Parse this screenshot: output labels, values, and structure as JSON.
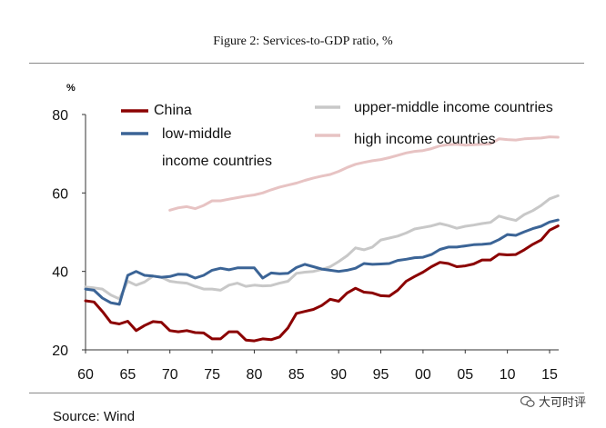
{
  "figure_title": "Figure 2: Services-to-GDP ratio, %",
  "source": "Source: Wind",
  "watermark": "大可时评",
  "chart_data": {
    "type": "line",
    "title": "",
    "xlabel": "",
    "ylabel": "%",
    "xlim": [
      1960,
      2016
    ],
    "ylim": [
      20,
      80
    ],
    "x_tick_labels": [
      "60",
      "65",
      "70",
      "75",
      "80",
      "85",
      "90",
      "95",
      "00",
      "05",
      "10",
      "15"
    ],
    "x_ticks": [
      1960,
      1965,
      1970,
      1975,
      1980,
      1985,
      1990,
      1995,
      2000,
      2005,
      2010,
      2015
    ],
    "y_ticks": [
      20,
      40,
      60,
      80
    ],
    "legend_position": "top-left",
    "series": [
      {
        "name": "China",
        "color": "#8b0000",
        "x": [
          1960,
          1961,
          1962,
          1963,
          1964,
          1965,
          1966,
          1967,
          1968,
          1969,
          1970,
          1971,
          1972,
          1973,
          1974,
          1975,
          1976,
          1977,
          1978,
          1979,
          1980,
          1981,
          1982,
          1983,
          1984,
          1985,
          1986,
          1987,
          1988,
          1989,
          1990,
          1991,
          1992,
          1993,
          1994,
          1995,
          1996,
          1997,
          1998,
          1999,
          2000,
          2001,
          2002,
          2003,
          2004,
          2005,
          2006,
          2007,
          2008,
          2009,
          2010,
          2011,
          2012,
          2013,
          2014,
          2015,
          2016
        ],
        "values": [
          32.5,
          32.2,
          29.8,
          27.0,
          26.6,
          27.3,
          24.9,
          26.2,
          27.2,
          27.0,
          24.9,
          24.6,
          24.9,
          24.4,
          24.3,
          22.8,
          22.8,
          24.6,
          24.6,
          22.5,
          22.3,
          22.8,
          22.6,
          23.3,
          25.6,
          29.3,
          29.8,
          30.3,
          31.3,
          32.9,
          32.4,
          34.5,
          35.7,
          34.7,
          34.5,
          33.8,
          33.7,
          35.2,
          37.5,
          38.7,
          39.8,
          41.2,
          42.3,
          42.0,
          41.2,
          41.4,
          41.9,
          42.9,
          42.9,
          44.4,
          44.2,
          44.3,
          45.5,
          46.9,
          48.0,
          50.5,
          51.6
        ]
      },
      {
        "name": "low-middle income countries",
        "color": "#3b6496",
        "x": [
          1960,
          1961,
          1962,
          1963,
          1964,
          1965,
          1966,
          1967,
          1968,
          1969,
          1970,
          1971,
          1972,
          1973,
          1974,
          1975,
          1976,
          1977,
          1978,
          1979,
          1980,
          1981,
          1982,
          1983,
          1984,
          1985,
          1986,
          1987,
          1988,
          1989,
          1990,
          1991,
          1992,
          1993,
          1994,
          1995,
          1996,
          1997,
          1998,
          1999,
          2000,
          2001,
          2002,
          2003,
          2004,
          2005,
          2006,
          2007,
          2008,
          2009,
          2010,
          2011,
          2012,
          2013,
          2014,
          2015,
          2016
        ],
        "values": [
          35.5,
          35.2,
          33.2,
          32.0,
          31.6,
          39.0,
          40.0,
          39.0,
          38.8,
          38.5,
          38.7,
          39.3,
          39.2,
          38.3,
          39.0,
          40.3,
          40.8,
          40.4,
          40.9,
          40.9,
          40.9,
          38.3,
          39.6,
          39.4,
          39.5,
          41.0,
          41.8,
          41.2,
          40.6,
          40.3,
          40.0,
          40.3,
          40.8,
          42.0,
          41.8,
          41.9,
          42.0,
          42.8,
          43.1,
          43.5,
          43.6,
          44.3,
          45.6,
          46.2,
          46.2,
          46.5,
          46.8,
          46.9,
          47.1,
          48.1,
          49.4,
          49.2,
          50.1,
          50.9,
          51.5,
          52.6,
          53.1
        ]
      },
      {
        "name": "upper-middle income countries",
        "color": "#c8c8c8",
        "x": [
          1960,
          1961,
          1962,
          1963,
          1964,
          1965,
          1966,
          1967,
          1968,
          1969,
          1970,
          1971,
          1972,
          1973,
          1974,
          1975,
          1976,
          1977,
          1978,
          1979,
          1980,
          1981,
          1982,
          1983,
          1984,
          1985,
          1986,
          1987,
          1988,
          1989,
          1990,
          1991,
          1992,
          1993,
          1994,
          1995,
          1996,
          1997,
          1998,
          1999,
          2000,
          2001,
          2002,
          2003,
          2004,
          2005,
          2006,
          2007,
          2008,
          2009,
          2010,
          2011,
          2012,
          2013,
          2014,
          2015,
          2016
        ],
        "values": [
          36.0,
          35.8,
          35.5,
          34.0,
          33.0,
          37.5,
          36.5,
          37.3,
          38.8,
          38.5,
          37.5,
          37.2,
          37.0,
          36.2,
          35.5,
          35.5,
          35.2,
          36.5,
          37.0,
          36.2,
          36.5,
          36.3,
          36.4,
          37.0,
          37.5,
          39.5,
          39.8,
          40.0,
          40.5,
          41.2,
          42.5,
          44.0,
          46.0,
          45.5,
          46.2,
          48.0,
          48.5,
          49.0,
          49.8,
          50.8,
          51.2,
          51.6,
          52.2,
          51.7,
          51.0,
          51.5,
          51.8,
          52.2,
          52.5,
          54.1,
          53.5,
          53.0,
          54.5,
          55.5,
          56.8,
          58.5,
          59.3
        ]
      },
      {
        "name": "high income countries",
        "color": "#e7c3c3",
        "x": [
          1970,
          1971,
          1972,
          1973,
          1974,
          1975,
          1976,
          1977,
          1978,
          1979,
          1980,
          1981,
          1982,
          1983,
          1984,
          1985,
          1986,
          1987,
          1988,
          1989,
          1990,
          1991,
          1992,
          1993,
          1994,
          1995,
          1996,
          1997,
          1998,
          1999,
          2000,
          2001,
          2002,
          2003,
          2004,
          2005,
          2006,
          2007,
          2008,
          2009,
          2010,
          2011,
          2012,
          2013,
          2014,
          2015,
          2016
        ],
        "values": [
          55.6,
          56.2,
          56.5,
          56.0,
          56.8,
          58.0,
          58.0,
          58.4,
          58.8,
          59.2,
          59.5,
          60.0,
          60.8,
          61.5,
          62.0,
          62.5,
          63.2,
          63.8,
          64.3,
          64.7,
          65.5,
          66.5,
          67.3,
          67.8,
          68.2,
          68.5,
          69.0,
          69.6,
          70.2,
          70.6,
          70.8,
          71.3,
          72.0,
          72.3,
          72.4,
          72.2,
          72.3,
          72.4,
          72.5,
          73.8,
          73.6,
          73.5,
          73.8,
          73.9,
          74.0,
          74.3,
          74.2
        ]
      }
    ]
  }
}
